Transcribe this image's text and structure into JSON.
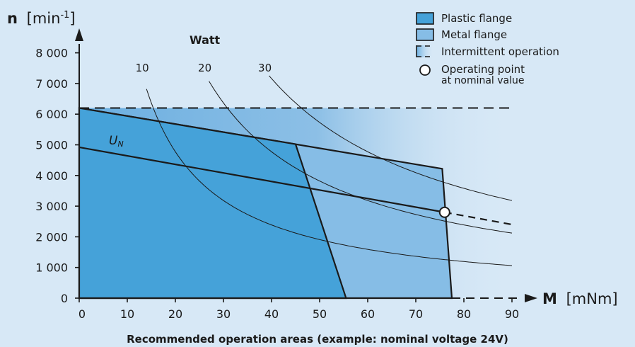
{
  "chart_data": {
    "type": "area",
    "caption": "Recommended operation areas (example: nominal voltage 24V)",
    "y_axis": {
      "symbol": "n",
      "unit": "[min",
      "unit_exp": "-1",
      "unit_close": "]",
      "min": 0,
      "max": 8000,
      "ticks": [
        0,
        1000,
        2000,
        3000,
        4000,
        5000,
        6000,
        7000,
        8000
      ],
      "tick_labels": [
        "0",
        "1 000",
        "2 000",
        "3 000",
        "4 000",
        "5 000",
        "6 000",
        "7 000",
        "8 000"
      ]
    },
    "x_axis": {
      "symbol": "M",
      "unit": "[mNm]",
      "min": 0,
      "max": 90,
      "ticks": [
        0,
        10,
        20,
        30,
        40,
        50,
        60,
        70,
        80,
        90
      ],
      "tick_labels": [
        "0",
        "10",
        "20",
        "30",
        "40",
        "50",
        "60",
        "70",
        "80",
        "90"
      ]
    },
    "legend": {
      "position": "top-right",
      "items": [
        {
          "key": "plastic",
          "label": "Plastic flange"
        },
        {
          "key": "metal",
          "label": "Metal flange"
        },
        {
          "key": "intermittent",
          "label": "Intermittent operation"
        },
        {
          "key": "operating_point",
          "label": "Operating point",
          "label2": "at nominal value"
        }
      ]
    },
    "colors": {
      "background": "#d7e8f6",
      "plastic": "#45a2d9",
      "metal": "#86bde6",
      "line": "#1a1a1a"
    },
    "regions": {
      "plastic_flange": [
        [
          0,
          6200
        ],
        [
          45,
          5020
        ],
        [
          55.5,
          0
        ],
        [
          0,
          0
        ]
      ],
      "metal_flange": [
        [
          0,
          6200
        ],
        [
          75.5,
          4220
        ],
        [
          77.5,
          0
        ],
        [
          0,
          0
        ]
      ]
    },
    "intermittent_limit": {
      "speed": 6200,
      "max_torque": 90
    },
    "nominal_line": {
      "label": "U",
      "label_sub": "N",
      "points": [
        [
          0,
          4920
        ],
        [
          76,
          2800
        ]
      ],
      "intermittent_points": [
        [
          76,
          2800
        ],
        [
          90,
          2400
        ]
      ]
    },
    "operating_point": {
      "torque": 76,
      "speed": 2800
    },
    "power_curves": {
      "title": "Watt",
      "curves": [
        {
          "watt": 10,
          "label": "10",
          "torque_range": [
            14,
            90
          ]
        },
        {
          "watt": 20,
          "label": "20",
          "torque_range": [
            27,
            90
          ]
        },
        {
          "watt": 30,
          "label": "30",
          "torque_range": [
            39.5,
            90
          ]
        }
      ]
    }
  }
}
